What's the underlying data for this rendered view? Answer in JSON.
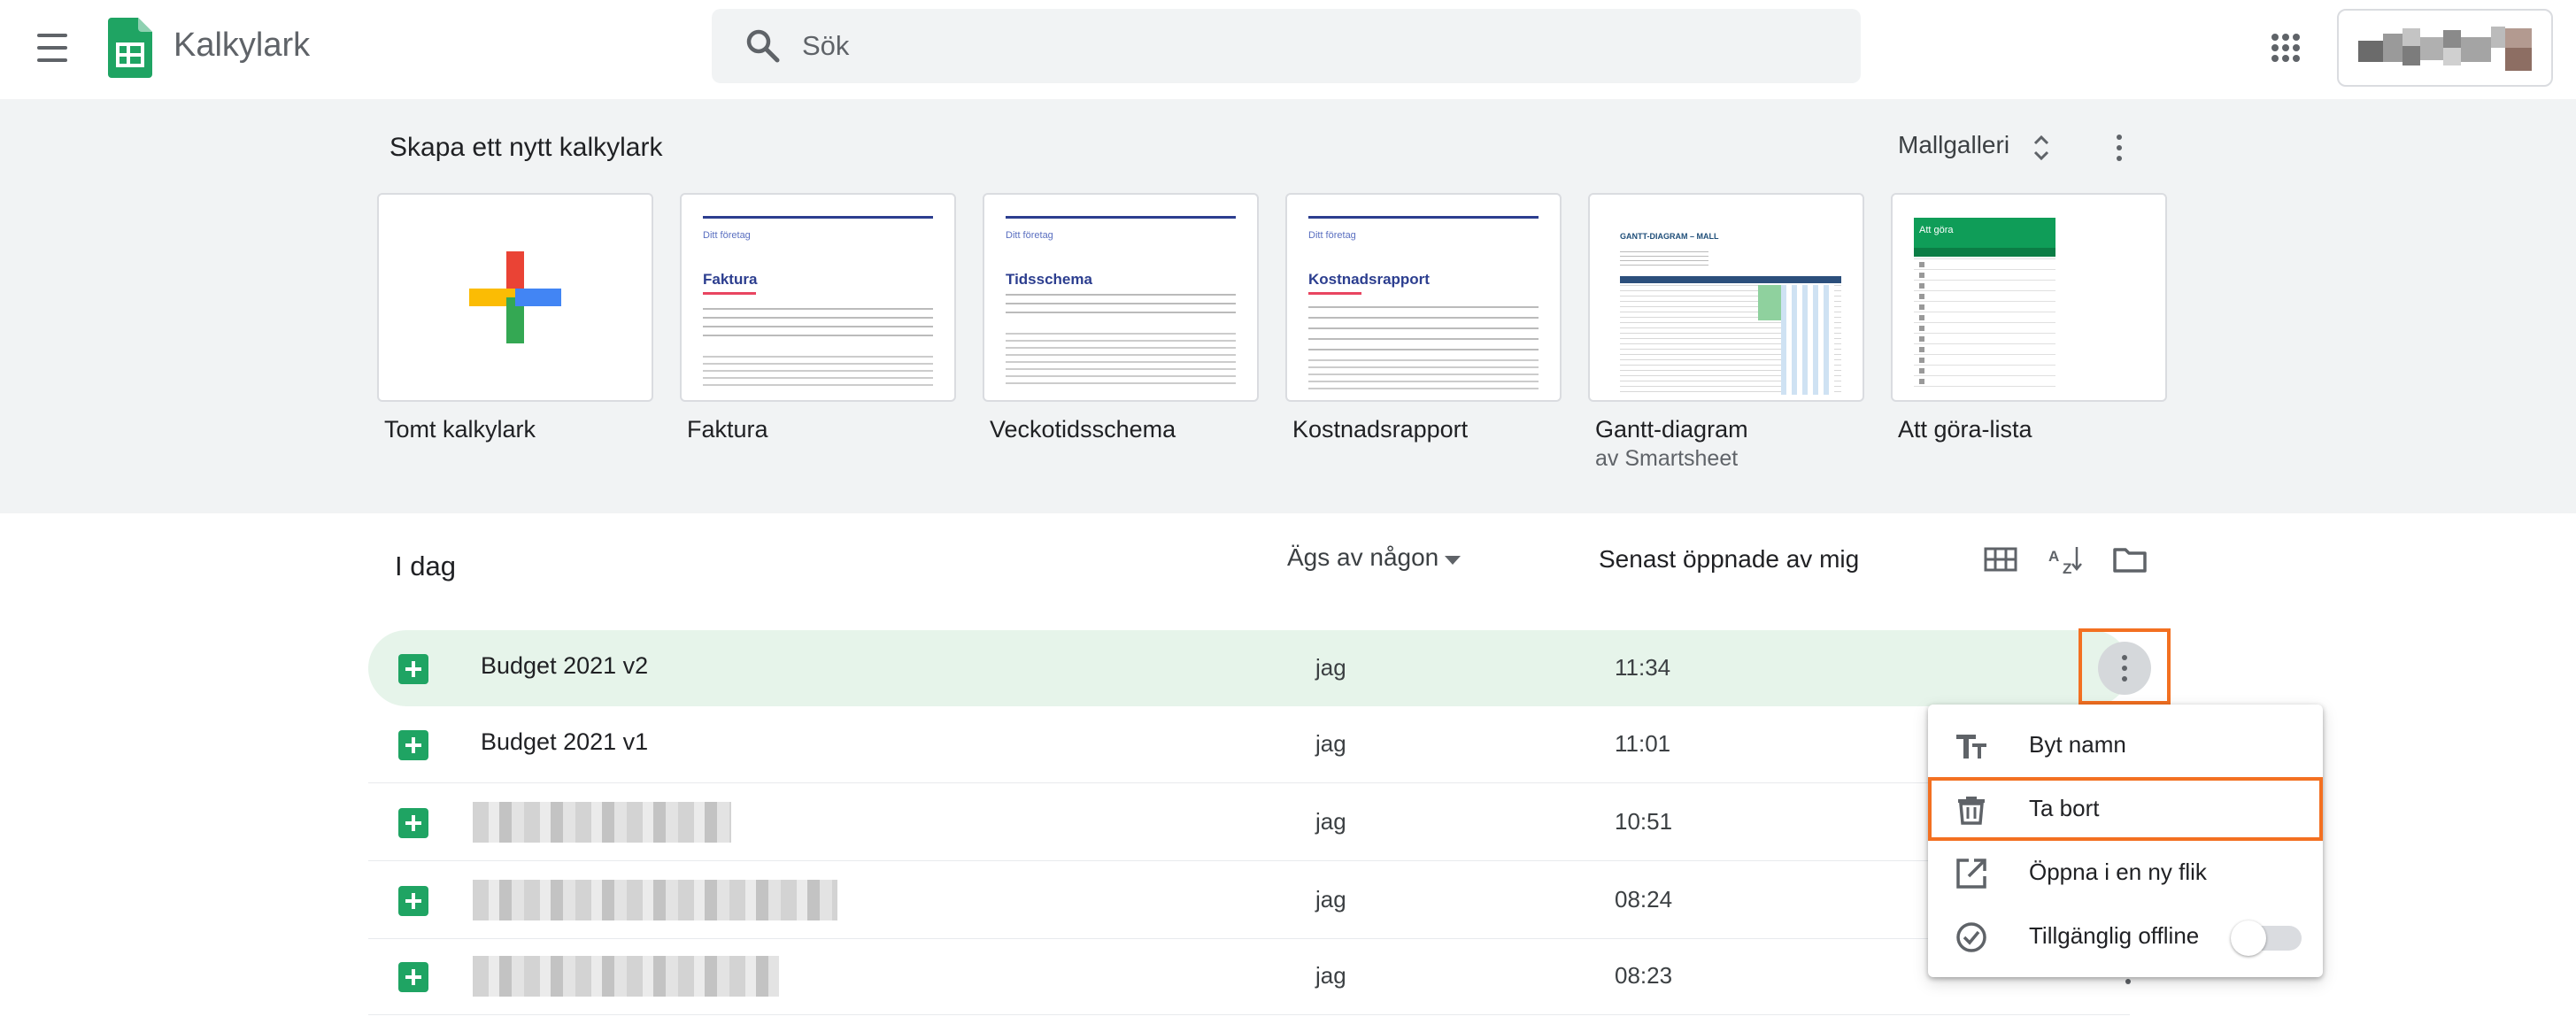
{
  "header": {
    "app_title": "Kalkylark",
    "search_placeholder": "Sök"
  },
  "templates": {
    "section_title": "Skapa ett nytt kalkylark",
    "gallery_label": "Mallgalleri",
    "items": [
      {
        "label": "Tomt kalkylark",
        "sub": ""
      },
      {
        "label": "Faktura",
        "sub": "",
        "thumb_title": "Faktura",
        "thumb_company": "Ditt företag"
      },
      {
        "label": "Veckotidsschema",
        "sub": "",
        "thumb_title": "Tidsschema",
        "thumb_company": "Ditt företag"
      },
      {
        "label": "Kostnadsrapport",
        "sub": "",
        "thumb_title": "Kostnadsrapport",
        "thumb_company": "Ditt företag"
      },
      {
        "label": "Gantt-diagram",
        "sub": "av Smartsheet",
        "thumb_title": "GANTT-DIAGRAM – MALL"
      },
      {
        "label": "Att göra-lista",
        "sub": "",
        "thumb_title": "Att göra"
      }
    ]
  },
  "list": {
    "title": "I dag",
    "owner_filter": "Ägs av någon",
    "sort_label": "Senast öppnade av mig",
    "rows": [
      {
        "name": "Budget 2021 v2",
        "owner": "jag",
        "time": "11:34"
      },
      {
        "name": "Budget 2021 v1",
        "owner": "jag",
        "time": "11:01"
      },
      {
        "name": "",
        "owner": "jag",
        "time": "10:51"
      },
      {
        "name": "",
        "owner": "jag",
        "time": "08:24"
      },
      {
        "name": "",
        "owner": "jag",
        "time": "08:23"
      }
    ]
  },
  "context_menu": {
    "items": [
      {
        "label": "Byt namn",
        "icon": "text-format-icon"
      },
      {
        "label": "Ta bort",
        "icon": "trash-icon"
      },
      {
        "label": "Öppna i en ny flik",
        "icon": "open-in-new-icon"
      },
      {
        "label": "Tillgänglig offline",
        "icon": "offline-check-icon",
        "toggle": false
      }
    ]
  },
  "colors": {
    "sheets_green": "#1fa463",
    "highlight_orange": "#f37021",
    "selected_row": "#e6f4ea",
    "template_bg": "#f1f3f4"
  }
}
